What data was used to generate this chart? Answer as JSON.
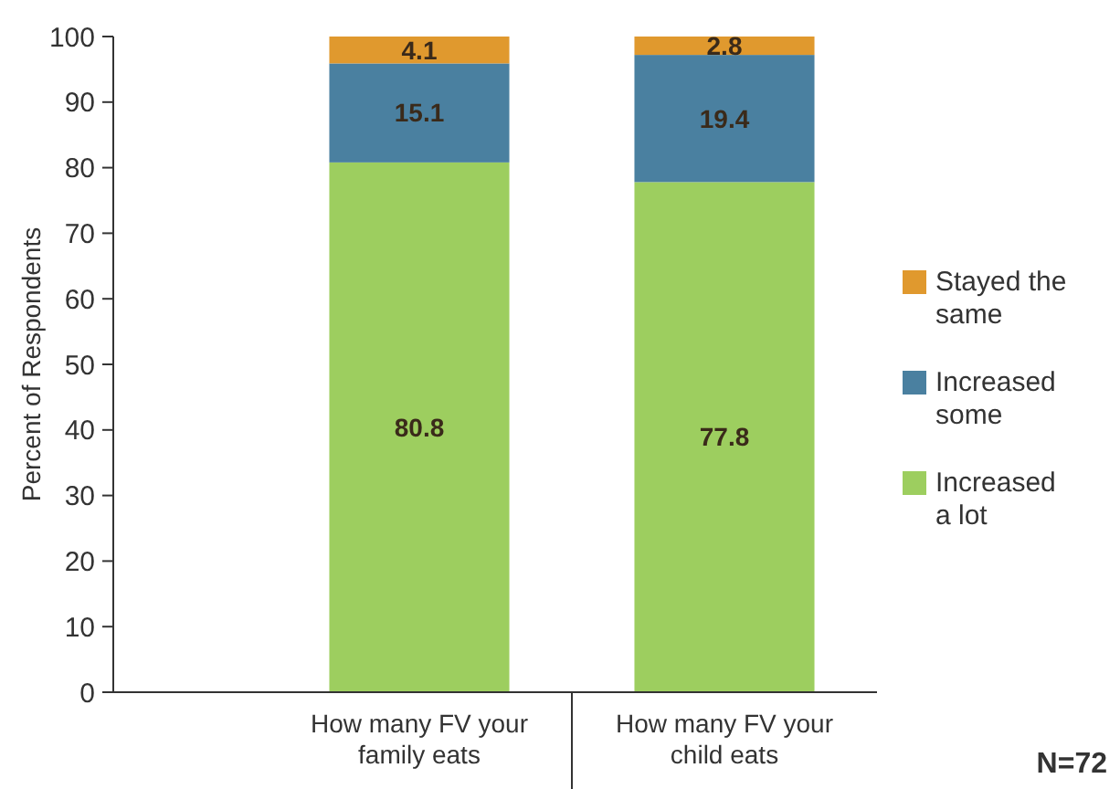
{
  "chart_data": {
    "type": "bar",
    "stacked": true,
    "ylabel": "Percent of Respondents",
    "categories": [
      "How many FV your family eats",
      "How many FV your child eats"
    ],
    "series": [
      {
        "name": "Increased a lot",
        "color": "#9dce5f",
        "values": [
          80.8,
          77.8
        ]
      },
      {
        "name": "Increased some",
        "color": "#4a80a0",
        "values": [
          15.1,
          19.4
        ]
      },
      {
        "name": "Stayed the same",
        "color": "#e0992e",
        "values": [
          4.1,
          2.8
        ]
      }
    ],
    "ylim": [
      0,
      100
    ],
    "yticks": [
      0,
      10,
      20,
      30,
      40,
      50,
      60,
      70,
      80,
      90,
      100
    ],
    "data_labels": true,
    "legend": "right",
    "annotations": [
      "N=72"
    ]
  }
}
